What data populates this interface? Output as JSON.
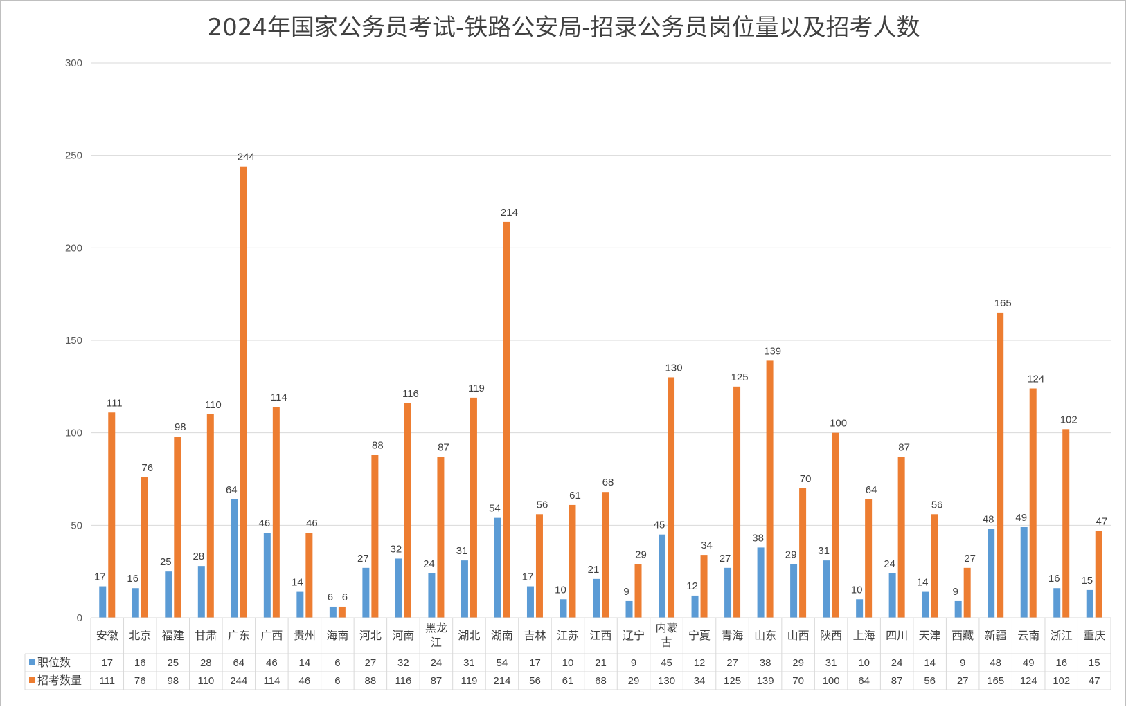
{
  "chart_data": {
    "type": "bar",
    "title": "2024年国家公务员考试-铁路公安局-招录公务员岗位量以及招考人数",
    "categories": [
      "安徽",
      "北京",
      "福建",
      "甘肃",
      "广东",
      "广西",
      "贵州",
      "海南",
      "河北",
      "河南",
      "黑龙江",
      "湖北",
      "湖南",
      "吉林",
      "江苏",
      "江西",
      "辽宁",
      "内蒙古",
      "宁夏",
      "青海",
      "山东",
      "山西",
      "陕西",
      "上海",
      "四川",
      "天津",
      "西藏",
      "新疆",
      "云南",
      "浙江",
      "重庆"
    ],
    "series": [
      {
        "name": "职位数",
        "color": "#5b9bd5",
        "values": [
          17,
          16,
          25,
          28,
          64,
          46,
          14,
          6,
          27,
          32,
          24,
          31,
          54,
          17,
          10,
          21,
          9,
          45,
          12,
          27,
          38,
          29,
          31,
          10,
          24,
          14,
          9,
          48,
          49,
          16,
          15
        ]
      },
      {
        "name": "招考数量",
        "color": "#ed7d31",
        "values": [
          111,
          76,
          98,
          110,
          244,
          114,
          46,
          6,
          88,
          116,
          87,
          119,
          214,
          56,
          61,
          68,
          29,
          130,
          34,
          125,
          139,
          70,
          100,
          64,
          87,
          56,
          27,
          165,
          124,
          102,
          47
        ]
      }
    ],
    "yticks": [
      0,
      50,
      100,
      150,
      200,
      250,
      300
    ],
    "ylim": [
      0,
      300
    ],
    "grid": true,
    "legend": "data-table",
    "data_table": true
  }
}
